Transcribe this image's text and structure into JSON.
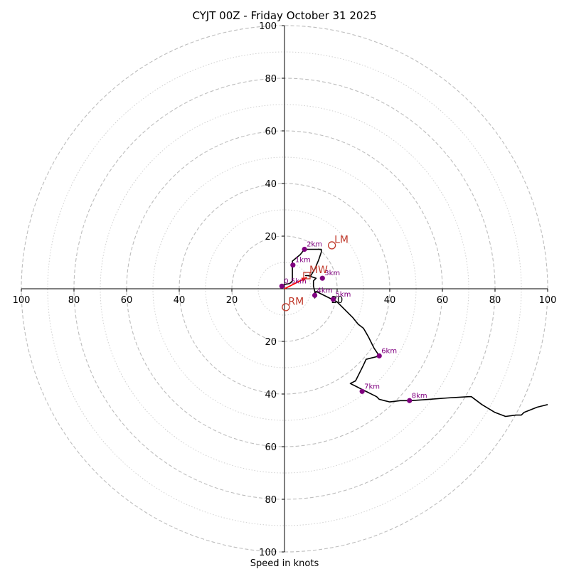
{
  "chart_data": {
    "type": "hodograph",
    "title": "CYJT 00Z - Friday October 31 2025",
    "xlabel": "Speed in knots",
    "range": [
      -100,
      100
    ],
    "major_rings": [
      20,
      40,
      60,
      80,
      100
    ],
    "minor_rings": [
      10,
      30,
      50,
      70,
      90
    ],
    "x_ticks": [
      "100",
      "80",
      "60",
      "40",
      "20",
      "20",
      "40",
      "60",
      "80",
      "100"
    ],
    "y_ticks": [
      "100",
      "80",
      "60",
      "40",
      "20",
      "20",
      "40",
      "60",
      "80",
      "100"
    ],
    "trace": [
      [
        -1,
        1
      ],
      [
        -0.5,
        1.5
      ],
      [
        2,
        2
      ],
      [
        3,
        3
      ],
      [
        3,
        8
      ],
      [
        3,
        10.5
      ],
      [
        6,
        13
      ],
      [
        7.6,
        15
      ],
      [
        10,
        15
      ],
      [
        14,
        15
      ],
      [
        14,
        14
      ],
      [
        13,
        11
      ],
      [
        11.5,
        7.5
      ],
      [
        10,
        5
      ],
      [
        8,
        5
      ],
      [
        9,
        5
      ],
      [
        12,
        4
      ],
      [
        11,
        3
      ],
      [
        11,
        1
      ],
      [
        11.5,
        -1
      ],
      [
        11.5,
        -3.5
      ],
      [
        12,
        -1
      ],
      [
        14,
        -2
      ],
      [
        17,
        -3.5
      ],
      [
        20,
        -5
      ],
      [
        22,
        -7
      ],
      [
        24,
        -9
      ],
      [
        26,
        -11
      ],
      [
        28,
        -13.5
      ],
      [
        30,
        -15
      ],
      [
        31,
        -16.7
      ],
      [
        32,
        -18.5
      ],
      [
        33,
        -20.5
      ],
      [
        34,
        -22.5
      ],
      [
        35,
        -24
      ],
      [
        36,
        -25.5
      ],
      [
        35,
        -25.8
      ],
      [
        33,
        -26.3
      ],
      [
        31,
        -26.8
      ],
      [
        30,
        -29
      ],
      [
        29,
        -31
      ],
      [
        28,
        -33
      ],
      [
        27,
        -35
      ],
      [
        25,
        -36
      ],
      [
        27,
        -37
      ],
      [
        30,
        -38.5
      ],
      [
        35,
        -41
      ],
      [
        36,
        -42
      ],
      [
        38,
        -42.5
      ],
      [
        40,
        -43
      ],
      [
        44,
        -42.5
      ],
      [
        48,
        -42.5
      ],
      [
        55,
        -42
      ],
      [
        62,
        -41.5
      ],
      [
        70,
        -41
      ],
      [
        71,
        -41
      ],
      [
        75,
        -44
      ],
      [
        80,
        -47
      ],
      [
        84,
        -48.5
      ],
      [
        88,
        -48
      ],
      [
        90,
        -48
      ],
      [
        91,
        -47
      ],
      [
        96,
        -45
      ],
      [
        100,
        -44
      ]
    ],
    "height_markers": [
      {
        "label": "0.5km",
        "x": -1,
        "y": 1
      },
      {
        "label": "1km",
        "x": 3.2,
        "y": 9
      },
      {
        "label": "2km",
        "x": 7.6,
        "y": 15
      },
      {
        "label": "3km",
        "x": 14.4,
        "y": 4
      },
      {
        "label": "4km",
        "x": 11.5,
        "y": -2.5
      },
      {
        "label": "5km",
        "x": 18.5,
        "y": -4
      },
      {
        "label": "6km",
        "x": 36,
        "y": -25.5
      },
      {
        "label": "7km",
        "x": 29.5,
        "y": -39
      },
      {
        "label": "8km",
        "x": 47.5,
        "y": -42.5
      }
    ],
    "motion_markers": [
      {
        "label": "LM",
        "x": 18,
        "y": 16.5
      },
      {
        "label": "MW",
        "x": 8.5,
        "y": 5
      },
      {
        "label": "RM",
        "x": 0.5,
        "y": -7
      }
    ],
    "mean_wind_vector": {
      "x": 8.5,
      "y": 4.3
    },
    "colors": {
      "trace": "#000000",
      "height_marker": "#800080",
      "motion_marker": "#c0392b",
      "vector": "#ff0000",
      "ring": "#bdbdbd"
    }
  }
}
